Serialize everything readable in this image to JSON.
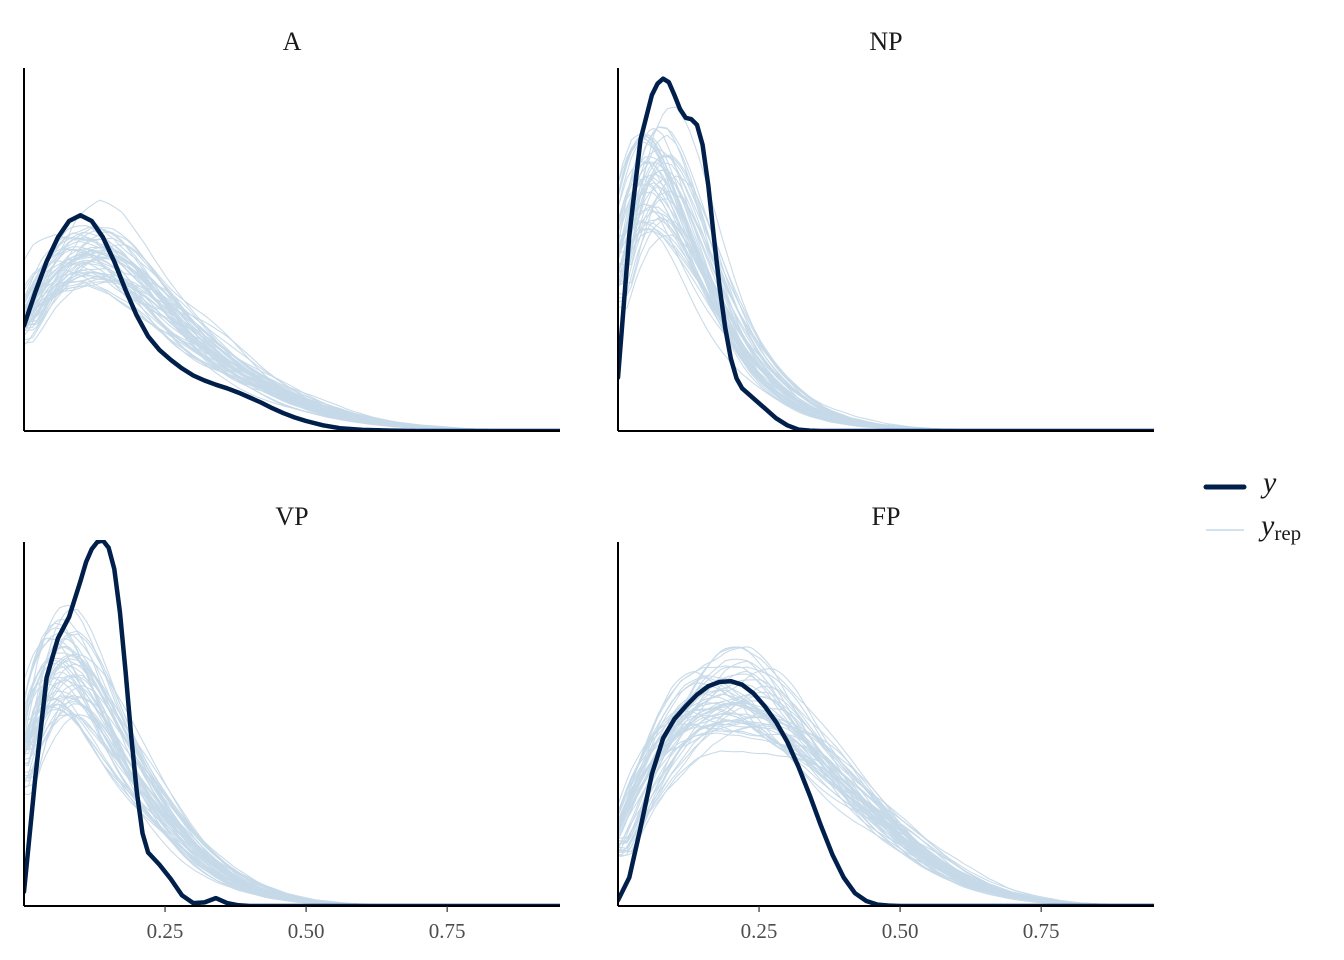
{
  "chart_data": {
    "type": "line",
    "subtype": "density-overlay",
    "facet_layout": "2x2",
    "xlim": [
      0,
      0.95
    ],
    "x_ticks": [
      0.25,
      0.5,
      0.75
    ],
    "x_tick_labels": [
      "0.25",
      "0.50",
      "0.75"
    ],
    "x_ticks_shown_on": "bottom-row",
    "y_axis_labels": "none",
    "grid": false,
    "legend": {
      "position": "right",
      "entries": [
        {
          "key": "y",
          "label": "y",
          "subscript": "",
          "color": "#011f4b",
          "width": "thick"
        },
        {
          "key": "yrep",
          "label": "y",
          "subscript": "rep",
          "color": "#c6d9e8",
          "width": "thin"
        }
      ]
    },
    "colors": {
      "y": "#011f4b",
      "yrep": "#c6d9e8"
    },
    "replicate_count": 50,
    "panels": [
      {
        "title": "A",
        "ylim": [
          0,
          5.1
        ],
        "y_observed": {
          "x": [
            0,
            0.02,
            0.04,
            0.06,
            0.08,
            0.1,
            0.12,
            0.14,
            0.16,
            0.18,
            0.2,
            0.22,
            0.24,
            0.26,
            0.28,
            0.3,
            0.32,
            0.34,
            0.36,
            0.38,
            0.4,
            0.42,
            0.44,
            0.46,
            0.48,
            0.5,
            0.53,
            0.56,
            0.6,
            0.65,
            0.7,
            0.8,
            0.95
          ],
          "y": [
            1.48,
            1.95,
            2.38,
            2.72,
            2.95,
            3.03,
            2.95,
            2.72,
            2.38,
            1.98,
            1.62,
            1.33,
            1.14,
            1.0,
            0.88,
            0.78,
            0.71,
            0.65,
            0.6,
            0.54,
            0.47,
            0.4,
            0.32,
            0.25,
            0.19,
            0.14,
            0.08,
            0.04,
            0.015,
            0.005,
            0.0,
            0.0,
            0.0
          ]
        },
        "y_rep_mean": {
          "x": [
            0,
            0.04,
            0.08,
            0.12,
            0.16,
            0.2,
            0.24,
            0.28,
            0.32,
            0.36,
            0.4,
            0.44,
            0.48,
            0.52,
            0.56,
            0.6,
            0.64,
            0.68,
            0.72,
            0.76,
            0.8,
            0.85,
            0.9,
            0.95
          ],
          "y": [
            1.55,
            2.1,
            2.43,
            2.5,
            2.38,
            2.12,
            1.8,
            1.5,
            1.22,
            0.98,
            0.77,
            0.6,
            0.45,
            0.33,
            0.23,
            0.16,
            0.11,
            0.07,
            0.05,
            0.03,
            0.02,
            0.015,
            0.01,
            0.005
          ]
        }
      },
      {
        "title": "NP",
        "ylim": [
          0,
          5.1
        ],
        "y_observed": {
          "x": [
            0,
            0.02,
            0.04,
            0.06,
            0.07,
            0.08,
            0.09,
            0.1,
            0.11,
            0.12,
            0.13,
            0.14,
            0.15,
            0.16,
            0.17,
            0.18,
            0.19,
            0.2,
            0.21,
            0.22,
            0.24,
            0.26,
            0.28,
            0.3,
            0.32,
            0.34,
            0.36,
            0.4,
            0.5,
            0.95
          ],
          "y": [
            0.75,
            2.75,
            4.1,
            4.72,
            4.88,
            4.95,
            4.9,
            4.72,
            4.52,
            4.4,
            4.38,
            4.3,
            4.02,
            3.45,
            2.72,
            2.02,
            1.45,
            1.02,
            0.74,
            0.6,
            0.46,
            0.32,
            0.18,
            0.08,
            0.02,
            0.005,
            0.0,
            0.0,
            0.0,
            0.0
          ]
        },
        "y_rep_mean": {
          "x": [
            0,
            0.02,
            0.04,
            0.06,
            0.08,
            0.1,
            0.12,
            0.14,
            0.16,
            0.18,
            0.2,
            0.22,
            0.24,
            0.26,
            0.28,
            0.3,
            0.32,
            0.34,
            0.36,
            0.4,
            0.45,
            0.5,
            0.55,
            0.6,
            0.65,
            0.7,
            0.8,
            0.95
          ],
          "y": [
            2.2,
            2.9,
            3.35,
            3.55,
            3.52,
            3.3,
            2.98,
            2.62,
            2.25,
            1.9,
            1.58,
            1.3,
            1.05,
            0.85,
            0.68,
            0.54,
            0.42,
            0.32,
            0.25,
            0.15,
            0.08,
            0.045,
            0.025,
            0.015,
            0.01,
            0.005,
            0.002,
            0.0
          ]
        }
      },
      {
        "title": "VP",
        "ylim": [
          0,
          5.1
        ],
        "y_observed": {
          "x": [
            0,
            0.02,
            0.04,
            0.06,
            0.08,
            0.1,
            0.11,
            0.12,
            0.13,
            0.14,
            0.15,
            0.16,
            0.17,
            0.18,
            0.19,
            0.2,
            0.21,
            0.22,
            0.24,
            0.26,
            0.28,
            0.3,
            0.32,
            0.34,
            0.36,
            0.38,
            0.4,
            0.5,
            0.95
          ],
          "y": [
            0.2,
            1.8,
            3.2,
            3.75,
            4.05,
            4.55,
            4.82,
            5.0,
            5.1,
            5.12,
            5.02,
            4.72,
            4.12,
            3.28,
            2.38,
            1.6,
            1.02,
            0.75,
            0.58,
            0.38,
            0.15,
            0.04,
            0.05,
            0.11,
            0.04,
            0.01,
            0.0,
            0.0,
            0.0
          ]
        },
        "y_rep_mean": {
          "x": [
            0,
            0.02,
            0.04,
            0.06,
            0.08,
            0.1,
            0.12,
            0.14,
            0.16,
            0.18,
            0.2,
            0.22,
            0.24,
            0.26,
            0.28,
            0.3,
            0.32,
            0.34,
            0.36,
            0.4,
            0.45,
            0.5,
            0.55,
            0.6,
            0.65,
            0.7,
            0.8,
            0.95
          ],
          "y": [
            2.1,
            2.75,
            3.1,
            3.28,
            3.3,
            3.18,
            2.96,
            2.7,
            2.4,
            2.12,
            1.85,
            1.6,
            1.37,
            1.16,
            0.97,
            0.8,
            0.66,
            0.54,
            0.43,
            0.27,
            0.14,
            0.07,
            0.035,
            0.018,
            0.009,
            0.004,
            0.001,
            0.0
          ]
        }
      },
      {
        "title": "FP",
        "ylim": [
          0,
          5.1
        ],
        "y_observed": {
          "x": [
            0,
            0.02,
            0.04,
            0.06,
            0.08,
            0.1,
            0.12,
            0.14,
            0.16,
            0.18,
            0.2,
            0.22,
            0.24,
            0.26,
            0.28,
            0.3,
            0.32,
            0.34,
            0.36,
            0.38,
            0.4,
            0.42,
            0.44,
            0.46,
            0.48,
            0.5,
            0.55,
            0.95
          ],
          "y": [
            0.08,
            0.4,
            1.1,
            1.85,
            2.35,
            2.62,
            2.8,
            2.96,
            3.08,
            3.14,
            3.15,
            3.1,
            2.98,
            2.8,
            2.58,
            2.3,
            1.95,
            1.55,
            1.12,
            0.72,
            0.4,
            0.18,
            0.07,
            0.02,
            0.005,
            0.0,
            0.0,
            0.0
          ]
        },
        "y_rep_mean": {
          "x": [
            0,
            0.04,
            0.08,
            0.12,
            0.16,
            0.2,
            0.24,
            0.28,
            0.32,
            0.36,
            0.4,
            0.44,
            0.48,
            0.52,
            0.56,
            0.6,
            0.64,
            0.68,
            0.72,
            0.76,
            0.8,
            0.85,
            0.9,
            0.95
          ],
          "y": [
            0.85,
            1.55,
            2.1,
            2.5,
            2.75,
            2.85,
            2.82,
            2.65,
            2.4,
            2.1,
            1.78,
            1.45,
            1.15,
            0.88,
            0.64,
            0.45,
            0.3,
            0.19,
            0.12,
            0.07,
            0.04,
            0.02,
            0.01,
            0.005
          ]
        }
      }
    ]
  }
}
